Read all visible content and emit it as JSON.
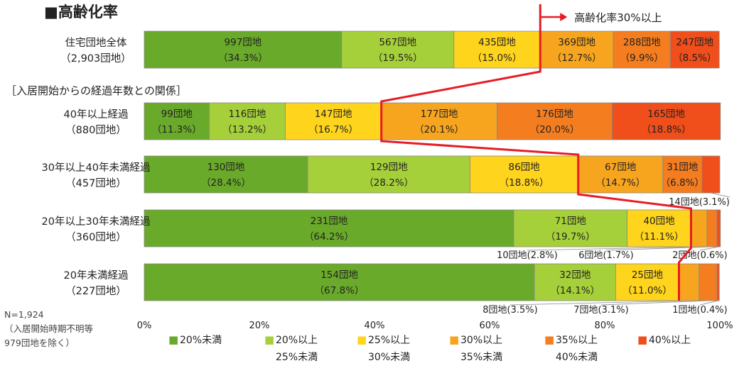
{
  "chart_data": {
    "type": "bar",
    "title": "■高齢化率",
    "annotation": "高齢化率30%以上",
    "section_label": "［入居開始からの経過年数との関係］",
    "categories": [
      {
        "name": "住宅団地全体",
        "sub": "（2,903団地）"
      },
      {
        "name": "40年以上経過",
        "sub": "（880団地）"
      },
      {
        "name": "30年以上40年未満経過",
        "sub": "（457団地）"
      },
      {
        "name": "20年以上30年未満経過",
        "sub": "（360団地）"
      },
      {
        "name": "20年未満経過",
        "sub": "（227団地）"
      }
    ],
    "series": [
      {
        "name": "20%未満",
        "color": "#6aaa2a",
        "counts": [
          "997団地",
          "99団地",
          "130団地",
          "231団地",
          "154団地"
        ],
        "percents": [
          "（34.3%）",
          "（11.3%）",
          "（28.4%）",
          "（64.2%）",
          "（67.8%）"
        ],
        "values": [
          34.3,
          11.3,
          28.4,
          64.2,
          67.8
        ]
      },
      {
        "name": "20%以上25%未満",
        "color": "#a6d03a",
        "counts": [
          "567団地",
          "116団地",
          "129団地",
          "71団地",
          "32団地"
        ],
        "percents": [
          "（19.5%）",
          "（13.2%）",
          "（28.2%）",
          "（19.7%）",
          "（14.1%）"
        ],
        "values": [
          19.5,
          13.2,
          28.2,
          19.7,
          14.1
        ]
      },
      {
        "name": "25%以上30%未満",
        "color": "#ffd41c",
        "counts": [
          "435団地",
          "147団地",
          "86団地",
          "40団地",
          "25団地"
        ],
        "percents": [
          "（15.0%）",
          "（16.7%）",
          "（18.8%）",
          "（11.1%）",
          "（11.0%）"
        ],
        "values": [
          15.0,
          16.7,
          18.8,
          11.1,
          11.0
        ]
      },
      {
        "name": "30%以上35%未満",
        "color": "#f7a51f",
        "counts": [
          "369団地",
          "177団地",
          "67団地",
          "10団地(2.8%)",
          "8団地(3.5%)"
        ],
        "percents": [
          "（12.7%）",
          "（20.1%）",
          "（14.7%）",
          "",
          ""
        ],
        "values": [
          12.7,
          20.1,
          14.7,
          2.8,
          3.5
        ]
      },
      {
        "name": "35%以上40%未満",
        "color": "#f47d1f",
        "counts": [
          "288団地",
          "176団地",
          "31団地",
          "6団地(1.7%)",
          "7団地(3.1%)"
        ],
        "percents": [
          "（9.9%）",
          "（20.0%）",
          "（6.8%）",
          "",
          ""
        ],
        "values": [
          9.9,
          20.0,
          6.8,
          1.7,
          3.1
        ]
      },
      {
        "name": "40%以上",
        "color": "#f04e1a",
        "counts": [
          "247団地",
          "165団地",
          "14団地(3.1%)",
          "2団地(0.6%)",
          "1団地(0.4%)"
        ],
        "percents": [
          "（8.5%）",
          "（18.8%）",
          "",
          "",
          ""
        ],
        "values": [
          8.5,
          18.8,
          3.1,
          0.6,
          0.4
        ]
      }
    ],
    "legend": [
      {
        "line1": "20%未満",
        "line2": ""
      },
      {
        "line1": "20%以上",
        "line2": "25%未満"
      },
      {
        "line1": "25%以上",
        "line2": "30%未満"
      },
      {
        "line1": "30%以上",
        "line2": "35%未満"
      },
      {
        "line1": "35%以上",
        "line2": "40%未満"
      },
      {
        "line1": "40%以上",
        "line2": ""
      }
    ],
    "legend_marker": "■",
    "x_ticks": [
      "0%",
      "20%",
      "40%",
      "60%",
      "80%",
      "100%"
    ],
    "xlim": [
      0,
      100
    ],
    "note": [
      "N=1,924",
      "（入居開始時期不明等",
      "979団地を除く）"
    ]
  }
}
